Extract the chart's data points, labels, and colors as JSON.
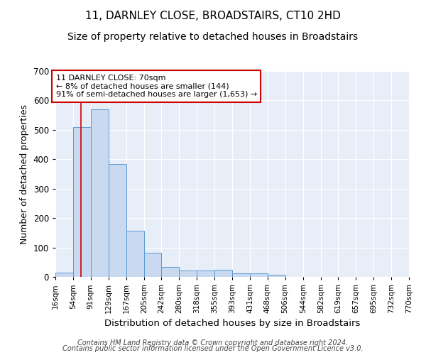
{
  "title": "11, DARNLEY CLOSE, BROADSTAIRS, CT10 2HD",
  "subtitle": "Size of property relative to detached houses in Broadstairs",
  "xlabel": "Distribution of detached houses by size in Broadstairs",
  "ylabel": "Number of detached properties",
  "bin_labels": [
    "16sqm",
    "54sqm",
    "91sqm",
    "129sqm",
    "167sqm",
    "205sqm",
    "242sqm",
    "280sqm",
    "318sqm",
    "355sqm",
    "393sqm",
    "431sqm",
    "468sqm",
    "506sqm",
    "544sqm",
    "582sqm",
    "619sqm",
    "657sqm",
    "695sqm",
    "732sqm",
    "770sqm"
  ],
  "bin_edges": [
    16,
    54,
    91,
    129,
    167,
    205,
    242,
    280,
    318,
    355,
    393,
    431,
    468,
    506,
    544,
    582,
    619,
    657,
    695,
    732,
    770
  ],
  "bar_heights": [
    15,
    510,
    570,
    385,
    158,
    82,
    35,
    22,
    22,
    23,
    12,
    12,
    8,
    0,
    0,
    0,
    0,
    0,
    0,
    0
  ],
  "bar_color": "#c9d9f0",
  "bar_edge_color": "#5b9bd5",
  "property_line_x": 70,
  "property_line_color": "#cc0000",
  "annotation_line1": "11 DARNLEY CLOSE: 70sqm",
  "annotation_line2": "← 8% of detached houses are smaller (144)",
  "annotation_line3": "91% of semi-detached houses are larger (1,653) →",
  "annotation_box_color": "#ffffff",
  "annotation_box_edge_color": "#cc0000",
  "ylim": [
    0,
    700
  ],
  "yticks": [
    0,
    100,
    200,
    300,
    400,
    500,
    600,
    700
  ],
  "background_color": "#e8eef8",
  "grid_color": "#ffffff",
  "footer_line1": "Contains HM Land Registry data © Crown copyright and database right 2024.",
  "footer_line2": "Contains public sector information licensed under the Open Government Licence v3.0.",
  "title_fontsize": 11,
  "subtitle_fontsize": 10,
  "xlabel_fontsize": 9.5,
  "ylabel_fontsize": 9,
  "footer_fontsize": 7,
  "annotation_fontsize": 8
}
